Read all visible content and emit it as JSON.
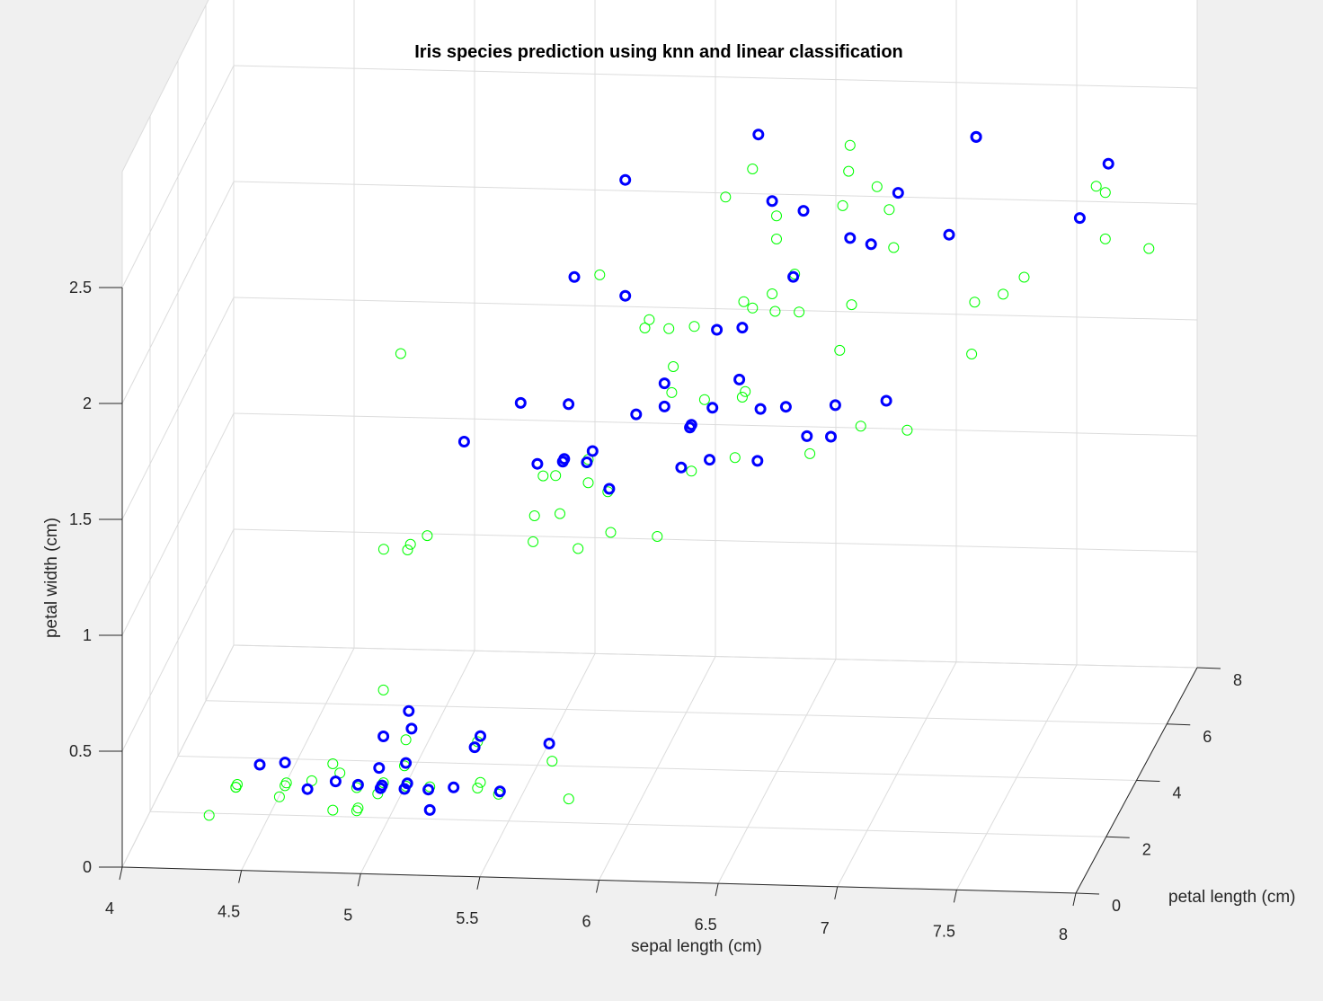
{
  "chart_data": {
    "type": "scatter",
    "title": "Iris species prediction using knn and linear classification",
    "xlabel": "sepal length (cm)",
    "ylabel": "petal length (cm)",
    "zlabel": "petal width (cm)",
    "xlim": [
      4,
      8
    ],
    "ylim": [
      0,
      8
    ],
    "zlim": [
      0,
      3
    ],
    "xticks": [
      "4",
      "4.5",
      "5",
      "5.5",
      "6",
      "6.5",
      "7",
      "7.5",
      "8"
    ],
    "yticks": [
      "0",
      "2",
      "4",
      "6",
      "8"
    ],
    "zticks": [
      "0",
      "0.5",
      "1",
      "1.5",
      "2",
      "2.5"
    ],
    "grid": true,
    "colors": {
      "background": "#f0f0f0",
      "axes": "#ffffff",
      "grid": "#dcdcdc",
      "axis_line": "#262626",
      "series_green": "#00ff00",
      "series_blue": "#0000ff"
    },
    "series": [
      {
        "marker": "open-circle",
        "color": "#00ff00",
        "points": [
          [
            5.1,
            1.4,
            0.2
          ],
          [
            4.9,
            1.4,
            0.2
          ],
          [
            4.7,
            1.3,
            0.2
          ],
          [
            4.6,
            1.5,
            0.2
          ],
          [
            5.0,
            1.4,
            0.2
          ],
          [
            5.4,
            1.7,
            0.4
          ],
          [
            4.6,
            1.4,
            0.3
          ],
          [
            5.0,
            1.5,
            0.2
          ],
          [
            4.4,
            1.4,
            0.2
          ],
          [
            4.9,
            1.5,
            0.1
          ],
          [
            5.4,
            1.5,
            0.2
          ],
          [
            4.8,
            1.6,
            0.2
          ],
          [
            4.8,
            1.4,
            0.1
          ],
          [
            4.3,
            1.1,
            0.1
          ],
          [
            5.8,
            1.2,
            0.2
          ],
          [
            5.7,
            1.5,
            0.4
          ],
          [
            5.4,
            1.3,
            0.4
          ],
          [
            5.1,
            1.4,
            0.3
          ],
          [
            5.7,
            1.7,
            0.3
          ],
          [
            5.1,
            1.5,
            0.3
          ],
          [
            5.4,
            1.7,
            0.2
          ],
          [
            5.1,
            1.5,
            0.4
          ],
          [
            4.6,
            1.0,
            0.2
          ],
          [
            5.1,
            1.7,
            0.5
          ],
          [
            4.8,
            1.9,
            0.2
          ],
          [
            5.0,
            1.6,
            0.2
          ],
          [
            5.0,
            1.6,
            0.4
          ],
          [
            5.2,
            1.5,
            0.2
          ],
          [
            5.2,
            1.4,
            0.2
          ],
          [
            4.7,
            1.6,
            0.2
          ],
          [
            4.8,
            1.6,
            0.2
          ],
          [
            5.4,
            1.5,
            0.4
          ],
          [
            5.2,
            1.5,
            0.1
          ],
          [
            5.5,
            1.4,
            0.2
          ],
          [
            4.9,
            1.5,
            0.2
          ],
          [
            5.0,
            1.2,
            0.2
          ],
          [
            5.5,
            1.3,
            0.2
          ],
          [
            4.9,
            1.4,
            0.1
          ],
          [
            4.4,
            1.3,
            0.2
          ],
          [
            5.1,
            1.5,
            0.2
          ],
          [
            5.0,
            1.3,
            0.3
          ],
          [
            4.5,
            1.3,
            0.3
          ],
          [
            4.4,
            1.3,
            0.2
          ],
          [
            5.0,
            1.6,
            0.6
          ],
          [
            5.1,
            1.9,
            0.4
          ],
          [
            4.8,
            1.4,
            0.3
          ],
          [
            5.1,
            1.6,
            0.2
          ],
          [
            4.6,
            1.4,
            0.2
          ],
          [
            5.3,
            1.5,
            0.2
          ],
          [
            5.0,
            1.4,
            0.2
          ],
          [
            7.0,
            4.7,
            1.4
          ],
          [
            6.4,
            4.5,
            1.5
          ],
          [
            6.9,
            4.9,
            1.5
          ],
          [
            5.5,
            4.0,
            1.3
          ],
          [
            6.5,
            4.6,
            1.5
          ],
          [
            5.7,
            4.5,
            1.3
          ],
          [
            6.3,
            4.7,
            1.6
          ],
          [
            4.9,
            3.3,
            1.0
          ],
          [
            6.6,
            4.6,
            1.3
          ],
          [
            5.2,
            3.9,
            1.4
          ],
          [
            5.0,
            3.5,
            1.0
          ],
          [
            5.9,
            4.2,
            1.5
          ],
          [
            6.0,
            4.0,
            1.0
          ],
          [
            6.1,
            4.7,
            1.4
          ],
          [
            5.6,
            3.6,
            1.3
          ],
          [
            6.7,
            4.4,
            1.4
          ],
          [
            5.6,
            4.5,
            1.5
          ],
          [
            5.8,
            4.1,
            1.0
          ],
          [
            6.2,
            4.5,
            1.5
          ],
          [
            5.6,
            3.9,
            1.1
          ],
          [
            5.9,
            4.8,
            1.8
          ],
          [
            6.1,
            4.0,
            1.3
          ],
          [
            6.3,
            4.9,
            1.5
          ],
          [
            6.1,
            4.7,
            1.2
          ],
          [
            6.4,
            4.3,
            1.3
          ],
          [
            6.6,
            4.4,
            1.4
          ],
          [
            6.8,
            4.8,
            1.4
          ],
          [
            6.7,
            5.0,
            1.7
          ],
          [
            6.0,
            4.5,
            1.5
          ],
          [
            5.7,
            3.5,
            1.0
          ],
          [
            5.5,
            3.8,
            1.1
          ],
          [
            5.5,
            3.7,
            1.0
          ],
          [
            5.8,
            3.9,
            1.2
          ],
          [
            6.0,
            5.1,
            1.6
          ],
          [
            5.4,
            4.5,
            1.5
          ],
          [
            6.0,
            4.5,
            1.6
          ],
          [
            6.7,
            4.7,
            1.5
          ],
          [
            6.3,
            4.4,
            1.3
          ],
          [
            5.6,
            4.1,
            1.3
          ],
          [
            5.5,
            4.0,
            1.3
          ],
          [
            5.5,
            4.4,
            1.2
          ],
          [
            6.1,
            4.6,
            1.4
          ],
          [
            5.8,
            4.0,
            1.2
          ],
          [
            5.0,
            3.3,
            1.0
          ],
          [
            5.6,
            4.2,
            1.3
          ],
          [
            5.7,
            4.2,
            1.2
          ],
          [
            5.7,
            4.2,
            1.3
          ],
          [
            6.2,
            4.3,
            1.3
          ],
          [
            5.1,
            3.0,
            1.1
          ],
          [
            5.7,
            4.1,
            1.3
          ],
          [
            6.3,
            6.0,
            2.5
          ],
          [
            5.8,
            5.1,
            1.9
          ],
          [
            7.1,
            5.9,
            2.1
          ],
          [
            6.3,
            5.6,
            1.8
          ],
          [
            6.5,
            5.8,
            2.2
          ],
          [
            7.6,
            6.6,
            2.1
          ],
          [
            4.9,
            4.5,
            1.7
          ],
          [
            7.3,
            6.3,
            1.8
          ],
          [
            6.7,
            5.8,
            1.8
          ],
          [
            7.2,
            6.1,
            2.5
          ],
          [
            6.5,
            5.1,
            2.0
          ],
          [
            6.4,
            5.3,
            1.9
          ],
          [
            6.8,
            5.5,
            2.1
          ],
          [
            5.7,
            5.0,
            2.0
          ],
          [
            5.8,
            5.1,
            2.4
          ],
          [
            6.4,
            5.3,
            2.3
          ],
          [
            6.5,
            5.5,
            1.8
          ],
          [
            7.7,
            6.7,
            2.2
          ],
          [
            7.7,
            6.9,
            2.3
          ],
          [
            6.0,
            5.0,
            1.5
          ],
          [
            6.9,
            5.7,
            2.3
          ],
          [
            5.6,
            4.9,
            2.0
          ],
          [
            7.7,
            6.7,
            2.0
          ],
          [
            6.3,
            4.9,
            1.8
          ],
          [
            6.7,
            5.7,
            2.1
          ],
          [
            7.2,
            6.0,
            1.8
          ],
          [
            6.2,
            4.8,
            1.8
          ],
          [
            6.1,
            4.9,
            1.8
          ],
          [
            6.4,
            5.6,
            2.1
          ],
          [
            7.2,
            5.8,
            1.6
          ],
          [
            7.4,
            6.1,
            1.9
          ],
          [
            7.9,
            6.4,
            2.0
          ],
          [
            6.4,
            5.6,
            2.2
          ],
          [
            6.3,
            5.1,
            1.5
          ],
          [
            6.1,
            5.6,
            1.4
          ],
          [
            7.7,
            6.1,
            2.3
          ],
          [
            6.3,
            5.6,
            2.4
          ],
          [
            6.4,
            5.5,
            1.8
          ],
          [
            6.0,
            4.8,
            1.8
          ],
          [
            6.9,
            5.4,
            2.1
          ],
          [
            6.7,
            5.6,
            2.4
          ],
          [
            6.9,
            5.1,
            2.3
          ],
          [
            6.8,
            5.9,
            2.3
          ],
          [
            6.7,
            5.7,
            2.5
          ],
          [
            6.7,
            5.2,
            2.3
          ],
          [
            6.3,
            5.0,
            1.9
          ],
          [
            6.5,
            5.2,
            2.0
          ],
          [
            6.2,
            5.4,
            2.3
          ],
          [
            5.9,
            5.1,
            1.8
          ]
        ]
      },
      {
        "marker": "open-circle-bold",
        "color": "#0000ff",
        "points": [
          [
            5.1,
            1.4,
            0.2
          ],
          [
            4.7,
            1.3,
            0.2
          ],
          [
            5.4,
            1.7,
            0.4
          ],
          [
            4.6,
            1.4,
            0.3
          ],
          [
            5.0,
            1.5,
            0.2
          ],
          [
            4.8,
            1.6,
            0.2
          ],
          [
            5.7,
            1.5,
            0.4
          ],
          [
            5.4,
            1.3,
            0.4
          ],
          [
            5.1,
            1.5,
            0.3
          ],
          [
            5.1,
            1.7,
            0.5
          ],
          [
            5.0,
            1.6,
            0.4
          ],
          [
            5.2,
            1.4,
            0.2
          ],
          [
            4.9,
            1.5,
            0.2
          ],
          [
            5.0,
            1.3,
            0.3
          ],
          [
            4.5,
            1.3,
            0.3
          ],
          [
            5.1,
            1.9,
            0.4
          ],
          [
            5.3,
            1.5,
            0.2
          ],
          [
            5.0,
            1.4,
            0.2
          ],
          [
            5.2,
            1.5,
            0.1
          ],
          [
            5.5,
            1.4,
            0.2
          ],
          [
            5.1,
            1.6,
            0.2
          ],
          [
            6.4,
            4.5,
            1.5
          ],
          [
            6.9,
            4.9,
            1.5
          ],
          [
            6.5,
            4.6,
            1.5
          ],
          [
            5.7,
            4.5,
            1.3
          ],
          [
            6.3,
            4.7,
            1.6
          ],
          [
            5.2,
            3.9,
            1.4
          ],
          [
            5.9,
            4.2,
            1.5
          ],
          [
            6.1,
            4.7,
            1.4
          ],
          [
            6.7,
            4.4,
            1.4
          ],
          [
            5.6,
            4.5,
            1.5
          ],
          [
            6.2,
            4.5,
            1.5
          ],
          [
            6.1,
            4.0,
            1.3
          ],
          [
            6.4,
            4.3,
            1.3
          ],
          [
            6.6,
            4.4,
            1.4
          ],
          [
            6.0,
            4.5,
            1.5
          ],
          [
            5.4,
            4.5,
            1.5
          ],
          [
            6.0,
            4.5,
            1.6
          ],
          [
            6.7,
            4.7,
            1.5
          ],
          [
            5.6,
            4.1,
            1.3
          ],
          [
            5.5,
            4.0,
            1.3
          ],
          [
            6.1,
            4.6,
            1.4
          ],
          [
            5.8,
            4.0,
            1.2
          ],
          [
            5.6,
            4.2,
            1.3
          ],
          [
            6.2,
            4.3,
            1.3
          ],
          [
            5.7,
            4.1,
            1.3
          ],
          [
            6.3,
            6.0,
            2.5
          ],
          [
            5.8,
            5.1,
            1.9
          ],
          [
            7.1,
            5.9,
            2.1
          ],
          [
            6.5,
            5.8,
            2.2
          ],
          [
            7.6,
            6.6,
            2.1
          ],
          [
            7.2,
            6.1,
            2.5
          ],
          [
            6.5,
            5.1,
            2.0
          ],
          [
            6.8,
            5.5,
            2.1
          ],
          [
            5.8,
            5.1,
            2.4
          ],
          [
            6.4,
            5.3,
            2.3
          ],
          [
            7.7,
            6.9,
            2.3
          ],
          [
            6.9,
            5.7,
            2.3
          ],
          [
            5.6,
            4.9,
            2.0
          ],
          [
            6.3,
            4.9,
            1.8
          ],
          [
            6.7,
            5.7,
            2.1
          ],
          [
            6.2,
            4.8,
            1.8
          ],
          [
            7.2,
            6.1,
            2.5
          ]
        ]
      }
    ]
  }
}
